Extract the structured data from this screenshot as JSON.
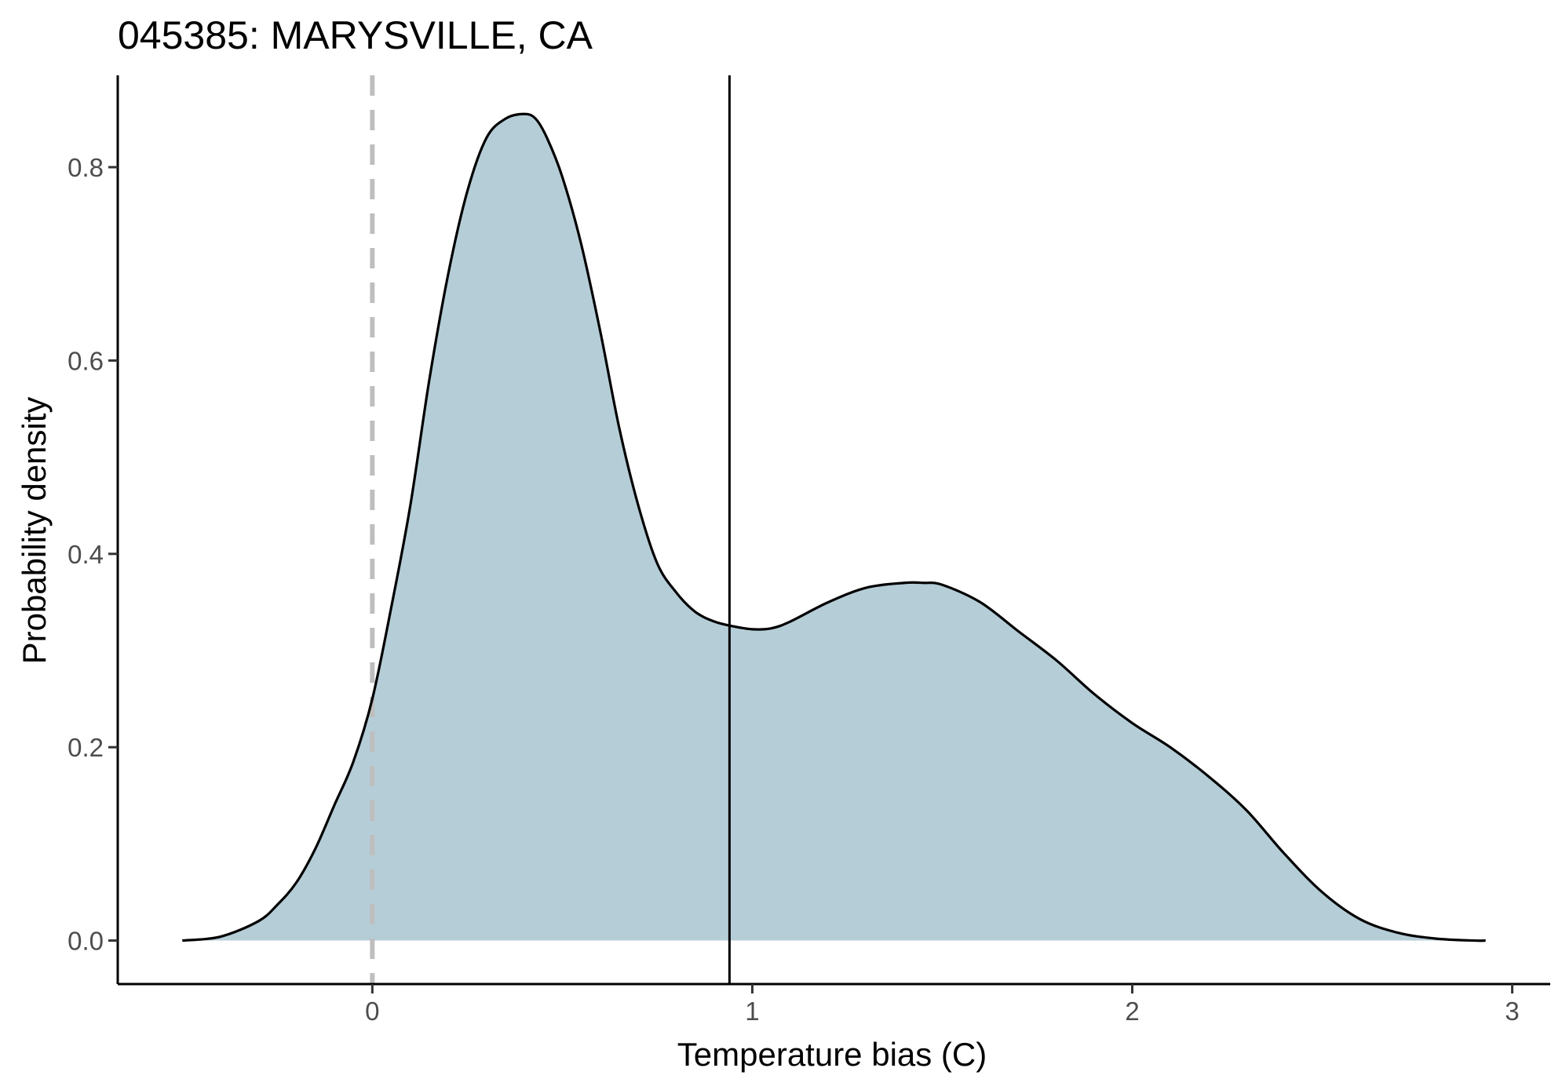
{
  "chart_data": {
    "type": "area",
    "title": "045385: MARYSVILLE, CA",
    "xlabel": "Temperature bias (C)",
    "ylabel": "Probability density",
    "xlim": [
      -0.67,
      3.1
    ],
    "ylim": [
      -0.045,
      0.895
    ],
    "x_ticks": [
      0,
      1,
      2,
      3
    ],
    "y_ticks": [
      0.0,
      0.2,
      0.4,
      0.6,
      0.8
    ],
    "x_tick_labels": [
      "0",
      "1",
      "2",
      "3"
    ],
    "y_tick_labels": [
      "0.0",
      "0.2",
      "0.4",
      "0.6",
      "0.8"
    ],
    "grid": false,
    "fill_color": "#b5cdd7",
    "line_color": "#000000",
    "reference_lines": [
      {
        "x": 0,
        "style": "dashed",
        "color": "#bebebe"
      },
      {
        "x": 0.94,
        "style": "solid",
        "color": "#000000"
      }
    ],
    "x": [
      -0.5,
      -0.4,
      -0.3,
      -0.25,
      -0.2,
      -0.15,
      -0.1,
      -0.05,
      0.0,
      0.05,
      0.1,
      0.15,
      0.2,
      0.25,
      0.3,
      0.35,
      0.4,
      0.43,
      0.46,
      0.5,
      0.55,
      0.6,
      0.65,
      0.7,
      0.75,
      0.8,
      0.85,
      0.9,
      0.95,
      1.0,
      1.05,
      1.1,
      1.2,
      1.3,
      1.4,
      1.45,
      1.5,
      1.6,
      1.7,
      1.8,
      1.9,
      2.0,
      2.1,
      2.2,
      2.3,
      2.4,
      2.5,
      2.6,
      2.7,
      2.8,
      2.9,
      2.93
    ],
    "values": [
      0.0,
      0.004,
      0.02,
      0.037,
      0.06,
      0.095,
      0.14,
      0.185,
      0.25,
      0.345,
      0.45,
      0.58,
      0.69,
      0.775,
      0.83,
      0.85,
      0.855,
      0.85,
      0.83,
      0.79,
      0.72,
      0.63,
      0.53,
      0.45,
      0.39,
      0.36,
      0.34,
      0.33,
      0.325,
      0.322,
      0.323,
      0.33,
      0.35,
      0.365,
      0.37,
      0.37,
      0.368,
      0.35,
      0.32,
      0.29,
      0.255,
      0.225,
      0.2,
      0.17,
      0.135,
      0.09,
      0.05,
      0.022,
      0.008,
      0.002,
      0.0,
      0.0
    ]
  }
}
